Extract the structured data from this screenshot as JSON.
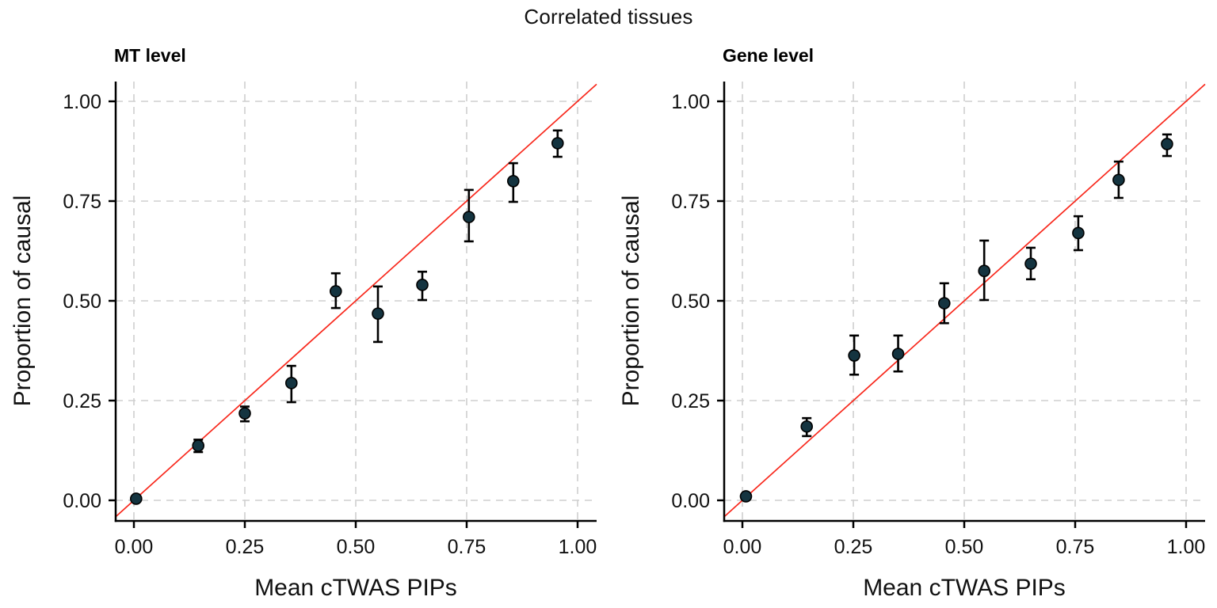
{
  "title": "Correlated tissues",
  "colors": {
    "background": "#FFFFFF",
    "point_fill": "#143440",
    "point_stroke": "#000000",
    "errorbar": "#000000",
    "identity_line": "#F8281C",
    "gridline": "#CFCFCF",
    "axis_line": "#000000",
    "text": "#111111"
  },
  "chart_data": [
    {
      "type": "scatter",
      "title": "MT level",
      "xlabel": "Mean cTWAS PIPs",
      "ylabel": "Proportion of causal",
      "xlim": [
        -0.04,
        1.04
      ],
      "ylim": [
        -0.05,
        1.05
      ],
      "grid": "dashed",
      "legend": "none",
      "x_tick_values": [
        0,
        0.25,
        0.5,
        0.75,
        1.0
      ],
      "x_tick_labels": [
        "0.00",
        "0.25",
        "0.50",
        "0.75",
        "1.00"
      ],
      "y_tick_values": [
        0,
        0.25,
        0.5,
        0.75,
        1.0
      ],
      "y_tick_labels": [
        "0.00",
        "0.25",
        "0.50",
        "0.75",
        "1.00"
      ],
      "identity_line": {
        "slope": 1,
        "intercept": 0
      },
      "points": [
        {
          "x": 0.005,
          "y": 0.004,
          "ylo": 0.001,
          "yhi": 0.01
        },
        {
          "x": 0.145,
          "y": 0.137,
          "ylo": 0.121,
          "yhi": 0.152
        },
        {
          "x": 0.25,
          "y": 0.218,
          "ylo": 0.198,
          "yhi": 0.235
        },
        {
          "x": 0.355,
          "y": 0.294,
          "ylo": 0.246,
          "yhi": 0.337
        },
        {
          "x": 0.455,
          "y": 0.524,
          "ylo": 0.482,
          "yhi": 0.569
        },
        {
          "x": 0.55,
          "y": 0.468,
          "ylo": 0.397,
          "yhi": 0.536
        },
        {
          "x": 0.65,
          "y": 0.54,
          "ylo": 0.502,
          "yhi": 0.573
        },
        {
          "x": 0.755,
          "y": 0.71,
          "ylo": 0.649,
          "yhi": 0.778
        },
        {
          "x": 0.855,
          "y": 0.8,
          "ylo": 0.748,
          "yhi": 0.845
        },
        {
          "x": 0.955,
          "y": 0.895,
          "ylo": 0.861,
          "yhi": 0.927
        }
      ]
    },
    {
      "type": "scatter",
      "title": "Gene level",
      "xlabel": "Mean cTWAS PIPs",
      "ylabel": "Proportion of causal",
      "xlim": [
        -0.04,
        1.04
      ],
      "ylim": [
        -0.05,
        1.05
      ],
      "grid": "dashed",
      "legend": "none",
      "x_tick_values": [
        0,
        0.25,
        0.5,
        0.75,
        1.0
      ],
      "x_tick_labels": [
        "0.00",
        "0.25",
        "0.50",
        "0.75",
        "1.00"
      ],
      "y_tick_values": [
        0,
        0.25,
        0.5,
        0.75,
        1.0
      ],
      "y_tick_labels": [
        "0.00",
        "0.25",
        "0.50",
        "0.75",
        "1.00"
      ],
      "identity_line": {
        "slope": 1,
        "intercept": 0
      },
      "points": [
        {
          "x": 0.008,
          "y": 0.01,
          "ylo": 0.005,
          "yhi": 0.016
        },
        {
          "x": 0.145,
          "y": 0.185,
          "ylo": 0.161,
          "yhi": 0.206
        },
        {
          "x": 0.252,
          "y": 0.363,
          "ylo": 0.315,
          "yhi": 0.413
        },
        {
          "x": 0.351,
          "y": 0.367,
          "ylo": 0.323,
          "yhi": 0.413
        },
        {
          "x": 0.455,
          "y": 0.494,
          "ylo": 0.444,
          "yhi": 0.544
        },
        {
          "x": 0.545,
          "y": 0.575,
          "ylo": 0.502,
          "yhi": 0.651
        },
        {
          "x": 0.65,
          "y": 0.593,
          "ylo": 0.554,
          "yhi": 0.633
        },
        {
          "x": 0.757,
          "y": 0.67,
          "ylo": 0.627,
          "yhi": 0.712
        },
        {
          "x": 0.848,
          "y": 0.803,
          "ylo": 0.758,
          "yhi": 0.849
        },
        {
          "x": 0.957,
          "y": 0.893,
          "ylo": 0.863,
          "yhi": 0.917
        }
      ]
    }
  ]
}
